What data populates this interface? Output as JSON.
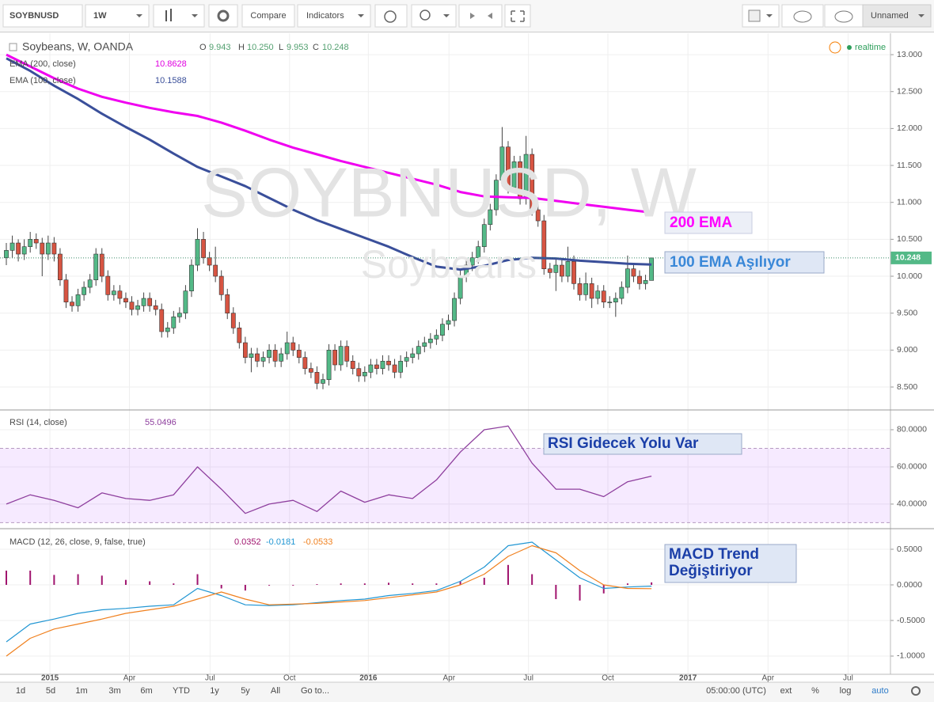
{
  "toolbar": {
    "symbol": "SOYBNUSD",
    "interval": "1W",
    "compare": "Compare",
    "indicators": "Indicators",
    "layout": "Unnamed"
  },
  "xlim": [
    0,
    148
  ],
  "xticks": [
    {
      "value": 7.3,
      "label": "2015"
    },
    {
      "value": 20.6,
      "label": "Apr"
    },
    {
      "value": 34.1,
      "label": "Jul"
    },
    {
      "value": 47.4,
      "label": "Oct"
    },
    {
      "value": 60.6,
      "label": "2016"
    },
    {
      "value": 74.1,
      "label": "Apr"
    },
    {
      "value": 87.4,
      "label": "Jul"
    },
    {
      "value": 100.7,
      "label": "Oct"
    },
    {
      "value": 114.1,
      "label": "2017"
    },
    {
      "value": 127.5,
      "label": "Apr"
    },
    {
      "value": 140.9,
      "label": "Jul"
    }
  ],
  "x": [
    0,
    4,
    8,
    12,
    16,
    20,
    24,
    28,
    32,
    36,
    40,
    44,
    48,
    52,
    56,
    60,
    64,
    68,
    72,
    76,
    80,
    84,
    88,
    92,
    96,
    100,
    104,
    108
  ],
  "main": {
    "title": "Soybeans, W, OANDA",
    "ohlc_keys": [
      "O",
      "H",
      "L",
      "C"
    ],
    "ohlc_labels": [
      "9.943",
      "10.250",
      "9.953",
      "10.248"
    ],
    "watermark": "SOYBNUSD, W",
    "watermark_sub": "Soybeans",
    "realtime": "realtime",
    "ylim": [
      8.2,
      13.29
    ],
    "yticks": [
      {
        "value": 13,
        "label": "13.000"
      },
      {
        "value": 12.5,
        "label": "12.500"
      },
      {
        "value": 12,
        "label": "12.000"
      },
      {
        "value": 11.5,
        "label": "11.500"
      },
      {
        "value": 11,
        "label": "11.000"
      },
      {
        "value": 10.5,
        "label": "10.500"
      },
      {
        "value": 10,
        "label": "10.000"
      },
      {
        "value": 9.5,
        "label": "9.500"
      },
      {
        "value": 9,
        "label": "9.000"
      },
      {
        "value": 8.5,
        "label": "8.500"
      }
    ],
    "up_color": "#53b987",
    "down_color": "#d75442",
    "candles": [
      [
        10.25,
        10.45,
        10.15,
        10.35
      ],
      [
        10.35,
        10.55,
        10.25,
        10.45
      ],
      [
        10.45,
        10.5,
        10.2,
        10.3
      ],
      [
        10.3,
        10.5,
        10.22,
        10.4
      ],
      [
        10.4,
        10.6,
        10.32,
        10.5
      ],
      [
        10.5,
        10.58,
        10.37,
        10.45
      ],
      [
        10.45,
        10.52,
        10.0,
        10.3
      ],
      [
        10.3,
        10.55,
        10.22,
        10.45
      ],
      [
        10.45,
        10.53,
        10.2,
        10.3
      ],
      [
        10.3,
        10.38,
        9.87,
        9.95
      ],
      [
        9.95,
        10.03,
        9.57,
        9.65
      ],
      [
        9.65,
        9.73,
        9.52,
        9.6
      ],
      [
        9.6,
        9.83,
        9.52,
        9.75
      ],
      [
        9.75,
        9.93,
        9.67,
        9.85
      ],
      [
        9.85,
        10.03,
        9.77,
        9.95
      ],
      [
        9.95,
        10.38,
        9.87,
        10.3
      ],
      [
        10.3,
        10.38,
        9.92,
        10.0
      ],
      [
        10.0,
        10.08,
        9.67,
        9.75
      ],
      [
        9.75,
        9.88,
        9.67,
        9.8
      ],
      [
        9.8,
        9.88,
        9.62,
        9.7
      ],
      [
        9.7,
        9.78,
        9.57,
        9.65
      ],
      [
        9.65,
        9.73,
        9.47,
        9.55
      ],
      [
        9.55,
        9.68,
        9.47,
        9.6
      ],
      [
        9.6,
        9.78,
        9.52,
        9.7
      ],
      [
        9.7,
        9.78,
        9.52,
        9.6
      ],
      [
        9.6,
        9.68,
        9.47,
        9.55
      ],
      [
        9.55,
        9.63,
        9.17,
        9.25
      ],
      [
        9.25,
        9.38,
        9.17,
        9.3
      ],
      [
        9.3,
        9.53,
        9.22,
        9.45
      ],
      [
        9.45,
        9.58,
        9.37,
        9.5
      ],
      [
        9.5,
        9.88,
        9.42,
        9.8
      ],
      [
        9.8,
        10.23,
        9.72,
        10.15
      ],
      [
        10.15,
        10.65,
        10.07,
        10.5
      ],
      [
        10.5,
        10.6,
        10.17,
        10.25
      ],
      [
        10.25,
        10.33,
        10.07,
        10.15
      ],
      [
        10.15,
        10.4,
        9.92,
        10.0
      ],
      [
        10.0,
        10.08,
        9.67,
        9.75
      ],
      [
        9.75,
        9.83,
        9.42,
        9.5
      ],
      [
        9.5,
        9.58,
        9.22,
        9.3
      ],
      [
        9.3,
        9.38,
        9.02,
        9.1
      ],
      [
        9.1,
        9.18,
        8.82,
        8.9
      ],
      [
        8.9,
        9.03,
        8.7,
        8.95
      ],
      [
        8.95,
        9.03,
        8.77,
        8.85
      ],
      [
        8.85,
        8.98,
        8.77,
        8.9
      ],
      [
        8.9,
        9.08,
        8.82,
        9.0
      ],
      [
        9.0,
        9.08,
        8.77,
        8.85
      ],
      [
        8.85,
        9.03,
        8.77,
        8.95
      ],
      [
        8.95,
        9.25,
        8.87,
        9.1
      ],
      [
        9.1,
        9.18,
        8.92,
        9.0
      ],
      [
        9.0,
        9.08,
        8.82,
        8.9
      ],
      [
        8.9,
        8.98,
        8.67,
        8.75
      ],
      [
        8.75,
        8.83,
        8.62,
        8.7
      ],
      [
        8.7,
        8.78,
        8.47,
        8.55
      ],
      [
        8.55,
        8.68,
        8.47,
        8.6
      ],
      [
        8.6,
        9.08,
        8.52,
        9.0
      ],
      [
        9.0,
        9.08,
        8.72,
        8.8
      ],
      [
        8.8,
        9.13,
        8.72,
        9.05
      ],
      [
        9.05,
        9.13,
        8.77,
        8.85
      ],
      [
        8.85,
        8.93,
        8.67,
        8.75
      ],
      [
        8.75,
        8.83,
        8.57,
        8.65
      ],
      [
        8.65,
        8.78,
        8.57,
        8.7
      ],
      [
        8.7,
        8.88,
        8.62,
        8.8
      ],
      [
        8.8,
        8.88,
        8.67,
        8.75
      ],
      [
        8.75,
        8.93,
        8.67,
        8.85
      ],
      [
        8.85,
        8.93,
        8.72,
        8.8
      ],
      [
        8.8,
        8.88,
        8.62,
        8.7
      ],
      [
        8.7,
        8.93,
        8.62,
        8.85
      ],
      [
        8.85,
        8.98,
        8.77,
        8.9
      ],
      [
        8.9,
        9.03,
        8.82,
        8.95
      ],
      [
        8.95,
        9.13,
        8.87,
        9.05
      ],
      [
        9.05,
        9.18,
        8.97,
        9.1
      ],
      [
        9.1,
        9.23,
        9.02,
        9.15
      ],
      [
        9.15,
        9.28,
        9.07,
        9.2
      ],
      [
        9.2,
        9.43,
        9.12,
        9.35
      ],
      [
        9.35,
        9.48,
        9.27,
        9.4
      ],
      [
        9.4,
        9.78,
        9.32,
        9.7
      ],
      [
        9.7,
        10.08,
        9.62,
        10.0
      ],
      [
        10.0,
        10.23,
        9.92,
        10.15
      ],
      [
        10.15,
        10.33,
        10.07,
        10.25
      ],
      [
        10.25,
        10.48,
        10.17,
        10.4
      ],
      [
        10.4,
        10.78,
        10.32,
        10.7
      ],
      [
        10.7,
        10.98,
        10.62,
        10.9
      ],
      [
        10.9,
        11.38,
        10.82,
        11.3
      ],
      [
        11.3,
        12.02,
        11.22,
        11.75
      ],
      [
        11.75,
        11.83,
        11.12,
        11.2
      ],
      [
        11.2,
        11.63,
        11.12,
        11.55
      ],
      [
        11.55,
        11.63,
        10.97,
        11.05
      ],
      [
        11.05,
        11.9,
        10.97,
        11.65
      ],
      [
        11.65,
        11.73,
        10.82,
        10.9
      ],
      [
        10.9,
        10.98,
        10.67,
        10.75
      ],
      [
        10.75,
        10.83,
        10.02,
        10.1
      ],
      [
        10.1,
        10.18,
        9.97,
        10.05
      ],
      [
        10.05,
        10.23,
        9.8,
        10.15
      ],
      [
        10.15,
        10.23,
        9.92,
        10.0
      ],
      [
        10.0,
        10.4,
        9.92,
        10.2
      ],
      [
        10.2,
        10.28,
        9.82,
        9.9
      ],
      [
        9.9,
        9.98,
        9.67,
        9.75
      ],
      [
        9.75,
        10.05,
        9.67,
        9.9
      ],
      [
        9.9,
        9.98,
        9.57,
        9.7
      ],
      [
        9.7,
        9.88,
        9.62,
        9.8
      ],
      [
        9.8,
        9.88,
        9.57,
        9.65
      ],
      [
        9.65,
        9.73,
        9.57,
        9.65
      ],
      [
        9.65,
        9.78,
        9.45,
        9.7
      ],
      [
        9.7,
        9.93,
        9.62,
        9.85
      ],
      [
        9.85,
        10.28,
        9.77,
        10.1
      ],
      [
        10.1,
        10.18,
        9.92,
        10.0
      ],
      [
        10.0,
        10.08,
        9.82,
        9.9
      ],
      [
        9.9,
        10.02,
        9.82,
        9.943
      ],
      [
        9.943,
        10.25,
        9.953,
        10.248
      ]
    ],
    "ema200": {
      "name": "EMA (200, close)",
      "color": "#f000f0",
      "values": [
        13.0,
        12.84,
        12.68,
        12.54,
        12.43,
        12.35,
        12.28,
        12.22,
        12.17,
        12.08,
        11.97,
        11.85,
        11.74,
        11.65,
        11.56,
        11.48,
        11.4,
        11.32,
        11.24,
        11.14,
        11.08,
        11.07,
        11.06,
        11.02,
        10.98,
        10.94,
        10.9,
        10.8628
      ]
    },
    "ema100": {
      "name": "EMA (100, close)",
      "color": "#3a4f9a",
      "values": [
        12.95,
        12.78,
        12.58,
        12.4,
        12.2,
        12.02,
        11.85,
        11.66,
        11.48,
        11.35,
        11.22,
        11.06,
        10.9,
        10.76,
        10.64,
        10.52,
        10.4,
        10.26,
        10.13,
        10.09,
        10.14,
        10.22,
        10.25,
        10.24,
        10.21,
        10.19,
        10.17,
        10.1588
      ]
    }
  },
  "rsi": {
    "name": "RSI (14, close)",
    "color": "#8e3f9e",
    "ylim": [
      27.2,
      90.2
    ],
    "yticks": [
      {
        "value": 80,
        "label": "80.0000"
      },
      {
        "value": 60,
        "label": "60.0000"
      },
      {
        "value": 40,
        "label": "40.0000"
      }
    ],
    "band": [
      30,
      70
    ],
    "values": [
      40,
      45,
      42,
      38,
      46,
      43,
      42,
      45,
      60,
      48,
      35,
      40,
      42,
      36,
      47,
      41,
      45,
      43,
      53,
      68,
      80,
      82,
      62,
      48,
      48,
      44,
      52,
      55.0496
    ]
  },
  "macd": {
    "name": "MACD (12, 26, close, 9, false, true)",
    "ylim": [
      -1.256,
      0.778
    ],
    "yticks": [
      {
        "value": 0.5,
        "label": "0.5000"
      },
      {
        "value": 0,
        "label": "0.0000"
      },
      {
        "value": -0.5,
        "label": "-0.5000"
      },
      {
        "value": -1,
        "label": "-1.0000"
      }
    ],
    "histogram": {
      "color": "#a0146e",
      "values": [
        0.2,
        0.2,
        0.14,
        0.15,
        0.13,
        0.07,
        0.05,
        0.02,
        0.15,
        -0.05,
        -0.08,
        -0.01,
        -0.01,
        0.01,
        0.02,
        0.02,
        0.03,
        0.02,
        0.02,
        0.05,
        0.1,
        0.28,
        0.15,
        -0.2,
        -0.22,
        -0.12,
        0.02,
        0.0352
      ]
    },
    "macd": {
      "color": "#2196d3",
      "values": [
        -0.8,
        -0.55,
        -0.48,
        -0.4,
        -0.35,
        -0.33,
        -0.3,
        -0.28,
        -0.05,
        -0.15,
        -0.28,
        -0.29,
        -0.28,
        -0.25,
        -0.22,
        -0.2,
        -0.15,
        -0.12,
        -0.08,
        0.05,
        0.25,
        0.55,
        0.6,
        0.35,
        0.1,
        -0.05,
        -0.03,
        -0.0181
      ]
    },
    "signal": {
      "color": "#f0801e",
      "values": [
        -1.0,
        -0.75,
        -0.62,
        -0.55,
        -0.48,
        -0.4,
        -0.35,
        -0.3,
        -0.2,
        -0.1,
        -0.2,
        -0.28,
        -0.27,
        -0.26,
        -0.24,
        -0.22,
        -0.18,
        -0.14,
        -0.1,
        0.0,
        0.15,
        0.4,
        0.55,
        0.45,
        0.2,
        0.0,
        -0.05,
        -0.0533
      ]
    }
  },
  "annotations": [
    [
      "200 EMA"
    ],
    [
      "100 EMA Aşılıyor"
    ],
    [
      "RSI Gidecek Yolu Var"
    ],
    [
      "MACD Trend",
      "Değiştiriyor"
    ]
  ],
  "bottombar": {
    "ranges": [
      "1d",
      "5d",
      "1m",
      "3m",
      "6m",
      "YTD",
      "1y",
      "5y",
      "All"
    ],
    "goto": "Go to...",
    "time": "05:00:00 (UTC)",
    "options": [
      "ext",
      "%",
      "log",
      "auto"
    ]
  }
}
